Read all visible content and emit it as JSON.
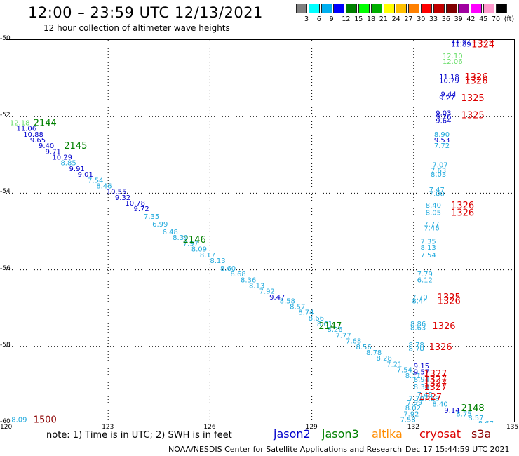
{
  "header": {
    "title": "12:00 – 23:59 UTC 12/13/2021",
    "subtitle": "12 hour collection of altimeter wave heights"
  },
  "legend": {
    "colors": [
      "#808080",
      "#00ffff",
      "#00b0f0",
      "#0000ff",
      "#008000",
      "#00ff00",
      "#00b000",
      "#ffff00",
      "#ffc000",
      "#ff8000",
      "#ff0000",
      "#c00000",
      "#800000",
      "#a000a0",
      "#ff00ff",
      "#ff99cc",
      "#000000"
    ],
    "labels": [
      "3",
      "6",
      "9",
      "12",
      "15",
      "18",
      "21",
      "24",
      "27",
      "30",
      "33",
      "36",
      "39",
      "42",
      "45",
      "70",
      "(ft)"
    ]
  },
  "axes": {
    "x_ticks": [
      "120",
      "123",
      "126",
      "129",
      "132",
      "135"
    ],
    "y_ticks": [
      "-50",
      "-52",
      "-54",
      "-56",
      "-58",
      "-60"
    ]
  },
  "footer": {
    "note": "note: 1) Time is in UTC; 2) SWH is in feet",
    "satellites": [
      {
        "name": "jason2",
        "color": "#0000cc"
      },
      {
        "name": "jason3",
        "color": "#008000"
      },
      {
        "name": "altika",
        "color": "#ff8c00"
      },
      {
        "name": "cryosat",
        "color": "#dd0000"
      },
      {
        "name": "s3a",
        "color": "#8b0000"
      }
    ],
    "credit": "NOAA/NESDIS Center for Satellite Applications and Research",
    "timestamp": "Dec 17 15:44:59 UTC 2021"
  },
  "map_data": {
    "x_range": [
      120,
      135
    ],
    "y_range": [
      -60,
      -50
    ],
    "time_labels": [
      {
        "text": "2144",
        "lon": 120.8,
        "lat": -52.15,
        "color": "#008000"
      },
      {
        "text": "2145",
        "lon": 121.7,
        "lat": -52.75,
        "color": "#008000"
      },
      {
        "text": "2146",
        "lon": 125.2,
        "lat": -55.2,
        "color": "#008000"
      },
      {
        "text": "2147",
        "lon": 129.2,
        "lat": -57.45,
        "color": "#008000"
      },
      {
        "text": "2148",
        "lon": 133.4,
        "lat": -59.6,
        "color": "#008000"
      },
      {
        "text": "1500",
        "lon": 120.8,
        "lat": -59.9,
        "color": "#8b0000"
      },
      {
        "text": "1324",
        "lon": 133.7,
        "lat": -50.0,
        "color": "#dd0000"
      },
      {
        "text": "1324",
        "lon": 133.7,
        "lat": -50.1,
        "color": "#dd0000"
      },
      {
        "text": "1326",
        "lon": 133.5,
        "lat": -50.95,
        "color": "#dd0000"
      },
      {
        "text": "1326",
        "lon": 133.5,
        "lat": -51.05,
        "color": "#dd0000"
      },
      {
        "text": "1325",
        "lon": 133.4,
        "lat": -51.5,
        "color": "#dd0000"
      },
      {
        "text": "1325",
        "lon": 133.4,
        "lat": -51.95,
        "color": "#dd0000"
      },
      {
        "text": "1326",
        "lon": 133.1,
        "lat": -54.3,
        "color": "#dd0000"
      },
      {
        "text": "1326",
        "lon": 133.1,
        "lat": -54.5,
        "color": "#dd0000"
      },
      {
        "text": "1325",
        "lon": 132.7,
        "lat": -56.7,
        "color": "#dd0000"
      },
      {
        "text": "1326",
        "lon": 132.7,
        "lat": -56.8,
        "color": "#dd0000"
      },
      {
        "text": "1326",
        "lon": 132.55,
        "lat": -57.45,
        "color": "#dd0000"
      },
      {
        "text": "1326",
        "lon": 132.45,
        "lat": -58.0,
        "color": "#dd0000"
      },
      {
        "text": "1327",
        "lon": 132.3,
        "lat": -58.7,
        "color": "#dd0000"
      },
      {
        "text": "1327",
        "lon": 132.3,
        "lat": -58.85,
        "color": "#dd0000"
      },
      {
        "text": "1327",
        "lon": 132.3,
        "lat": -58.95,
        "color": "#dd0000"
      },
      {
        "text": "1327",
        "lon": 132.3,
        "lat": -59.05,
        "color": "#dd0000"
      },
      {
        "text": "1327",
        "lon": 132.15,
        "lat": -59.3,
        "color": "#dd0000"
      }
    ],
    "points": [
      {
        "t": "12.18",
        "lon": 120.1,
        "lat": -52.15,
        "c": "#66dd66"
      },
      {
        "t": "11.06",
        "lon": 120.3,
        "lat": -52.3,
        "c": "#0000cc"
      },
      {
        "t": "10.88",
        "lon": 120.5,
        "lat": -52.45,
        "c": "#0000cc"
      },
      {
        "t": "9.65",
        "lon": 120.7,
        "lat": -52.6,
        "c": "#0000cc"
      },
      {
        "t": "9.40",
        "lon": 120.95,
        "lat": -52.75,
        "c": "#0000cc"
      },
      {
        "t": "9.71",
        "lon": 121.15,
        "lat": -52.9,
        "c": "#0000cc"
      },
      {
        "t": "10.29",
        "lon": 121.35,
        "lat": -53.05,
        "c": "#0000cc"
      },
      {
        "t": "8.85",
        "lon": 121.6,
        "lat": -53.2,
        "c": "#22aadd"
      },
      {
        "t": "9.91",
        "lon": 121.85,
        "lat": -53.35,
        "c": "#0000cc"
      },
      {
        "t": "9.01",
        "lon": 122.1,
        "lat": -53.5,
        "c": "#0000cc"
      },
      {
        "t": "7.54",
        "lon": 122.4,
        "lat": -53.65,
        "c": "#22aadd"
      },
      {
        "t": "8.46",
        "lon": 122.65,
        "lat": -53.8,
        "c": "#22aadd"
      },
      {
        "t": "10.55",
        "lon": 122.95,
        "lat": -53.95,
        "c": "#0000cc"
      },
      {
        "t": "9.32",
        "lon": 123.2,
        "lat": -54.1,
        "c": "#0000cc"
      },
      {
        "t": "10.78",
        "lon": 123.5,
        "lat": -54.25,
        "c": "#0000cc"
      },
      {
        "t": "9.72",
        "lon": 123.75,
        "lat": -54.4,
        "c": "#0000cc"
      },
      {
        "t": "7.35",
        "lon": 124.05,
        "lat": -54.6,
        "c": "#22aadd"
      },
      {
        "t": "6.99",
        "lon": 124.3,
        "lat": -54.8,
        "c": "#22aadd"
      },
      {
        "t": "6.48",
        "lon": 124.6,
        "lat": -55.0,
        "c": "#22aadd"
      },
      {
        "t": "8.39",
        "lon": 124.9,
        "lat": -55.15,
        "c": "#22aadd"
      },
      {
        "t": "7.97",
        "lon": 125.2,
        "lat": -55.3,
        "c": "#22aadd"
      },
      {
        "t": "8.09",
        "lon": 125.45,
        "lat": -55.45,
        "c": "#22aadd"
      },
      {
        "t": "8.17",
        "lon": 125.7,
        "lat": -55.6,
        "c": "#22aadd"
      },
      {
        "t": "8.13",
        "lon": 126.0,
        "lat": -55.75,
        "c": "#22aadd"
      },
      {
        "t": "8.60",
        "lon": 126.3,
        "lat": -55.95,
        "c": "#22aadd"
      },
      {
        "t": "8.68",
        "lon": 126.6,
        "lat": -56.1,
        "c": "#22aadd"
      },
      {
        "t": "8.36",
        "lon": 126.9,
        "lat": -56.25,
        "c": "#22aadd"
      },
      {
        "t": "8.13",
        "lon": 127.15,
        "lat": -56.4,
        "c": "#22aadd"
      },
      {
        "t": "7.92",
        "lon": 127.45,
        "lat": -56.55,
        "c": "#22aadd"
      },
      {
        "t": "9.47",
        "lon": 127.75,
        "lat": -56.7,
        "c": "#0000cc"
      },
      {
        "t": "8.58",
        "lon": 128.05,
        "lat": -56.8,
        "c": "#22aadd"
      },
      {
        "t": "8.57",
        "lon": 128.35,
        "lat": -56.95,
        "c": "#22aadd"
      },
      {
        "t": "8.74",
        "lon": 128.6,
        "lat": -57.1,
        "c": "#22aadd"
      },
      {
        "t": "8.66",
        "lon": 128.9,
        "lat": -57.25,
        "c": "#22aadd"
      },
      {
        "t": "8.61",
        "lon": 129.15,
        "lat": -57.4,
        "c": "#22aadd"
      },
      {
        "t": "8.26",
        "lon": 129.45,
        "lat": -57.55,
        "c": "#22aadd"
      },
      {
        "t": "7.77",
        "lon": 129.7,
        "lat": -57.7,
        "c": "#22aadd"
      },
      {
        "t": "7.68",
        "lon": 130.0,
        "lat": -57.85,
        "c": "#22aadd"
      },
      {
        "t": "8.56",
        "lon": 130.3,
        "lat": -58.0,
        "c": "#22aadd"
      },
      {
        "t": "8.78",
        "lon": 130.6,
        "lat": -58.15,
        "c": "#22aadd"
      },
      {
        "t": "8.28",
        "lon": 130.9,
        "lat": -58.3,
        "c": "#22aadd"
      },
      {
        "t": "7.21",
        "lon": 131.2,
        "lat": -58.45,
        "c": "#22aadd"
      },
      {
        "t": "7.54",
        "lon": 131.5,
        "lat": -58.6,
        "c": "#22aadd"
      },
      {
        "t": "8.11",
        "lon": 131.75,
        "lat": -58.75,
        "c": "#22aadd"
      },
      {
        "t": "8.94",
        "lon": 132.0,
        "lat": -58.85,
        "c": "#22aadd"
      },
      {
        "t": "8.34",
        "lon": 132.0,
        "lat": -59.05,
        "c": "#22aadd"
      },
      {
        "t": "9.15",
        "lon": 132.0,
        "lat": -58.5,
        "c": "#0000cc"
      },
      {
        "t": "9.57",
        "lon": 132.0,
        "lat": -58.65,
        "c": "#0000cc"
      },
      {
        "t": "7.45",
        "lon": 132.1,
        "lat": -59.25,
        "c": "#22aadd"
      },
      {
        "t": "7.70",
        "lon": 131.85,
        "lat": -59.35,
        "c": "#22aadd"
      },
      {
        "t": "7.99",
        "lon": 131.8,
        "lat": -59.45,
        "c": "#22aadd"
      },
      {
        "t": "8.02",
        "lon": 131.75,
        "lat": -59.6,
        "c": "#22aadd"
      },
      {
        "t": "7.92",
        "lon": 131.7,
        "lat": -59.75,
        "c": "#22aadd"
      },
      {
        "t": "7.58",
        "lon": 131.6,
        "lat": -59.9,
        "c": "#22aadd"
      },
      {
        "t": "7.69",
        "lon": 132.3,
        "lat": -59.35,
        "c": "#22aadd"
      },
      {
        "t": "8.40",
        "lon": 132.55,
        "lat": -59.5,
        "c": "#22aadd"
      },
      {
        "t": "9.14",
        "lon": 132.9,
        "lat": -59.65,
        "c": "#0000cc"
      },
      {
        "t": "8.75",
        "lon": 133.25,
        "lat": -59.75,
        "c": "#22aadd"
      },
      {
        "t": "8.57",
        "lon": 133.6,
        "lat": -59.85,
        "c": "#22aadd"
      },
      {
        "t": "8.67",
        "lon": 133.9,
        "lat": -60.0,
        "c": "#22aadd"
      },
      {
        "t": "8.46",
        "lon": 134.3,
        "lat": -60.15,
        "c": "#22aadd"
      },
      {
        "t": "8.01",
        "lon": 134.55,
        "lat": -60.25,
        "c": "#22aadd"
      },
      {
        "t": "11.47",
        "lon": 133.1,
        "lat": -50.0,
        "c": "#0000cc"
      },
      {
        "t": "11.89",
        "lon": 133.1,
        "lat": -50.1,
        "c": "#0000cc"
      },
      {
        "t": "12.10",
        "lon": 132.85,
        "lat": -50.4,
        "c": "#66dd66"
      },
      {
        "t": "12.06",
        "lon": 132.85,
        "lat": -50.55,
        "c": "#66dd66"
      },
      {
        "t": "11.18",
        "lon": 132.75,
        "lat": -50.95,
        "c": "#0000cc"
      },
      {
        "t": "10.79",
        "lon": 132.75,
        "lat": -51.05,
        "c": "#0000cc"
      },
      {
        "t": "9.44",
        "lon": 132.8,
        "lat": -51.4,
        "c": "#0000cc"
      },
      {
        "t": "9.27",
        "lon": 132.75,
        "lat": -51.5,
        "c": "#0000cc"
      },
      {
        "t": "9.03",
        "lon": 132.65,
        "lat": -51.9,
        "c": "#0000cc"
      },
      {
        "t": "9.26",
        "lon": 132.65,
        "lat": -52.0,
        "c": "#0000cc"
      },
      {
        "t": "9.64",
        "lon": 132.65,
        "lat": -52.1,
        "c": "#0000cc"
      },
      {
        "t": "8.90",
        "lon": 132.6,
        "lat": -52.45,
        "c": "#22aadd"
      },
      {
        "t": "9.53",
        "lon": 132.6,
        "lat": -52.6,
        "c": "#0000cc"
      },
      {
        "t": "7.72",
        "lon": 132.6,
        "lat": -52.75,
        "c": "#22aadd"
      },
      {
        "t": "7.07",
        "lon": 132.55,
        "lat": -53.25,
        "c": "#22aadd"
      },
      {
        "t": "7.63",
        "lon": 132.5,
        "lat": -53.4,
        "c": "#22aadd"
      },
      {
        "t": "8.03",
        "lon": 132.5,
        "lat": -53.5,
        "c": "#22aadd"
      },
      {
        "t": "7.47",
        "lon": 132.45,
        "lat": -53.9,
        "c": "#22aadd"
      },
      {
        "t": "7.00",
        "lon": 132.45,
        "lat": -54.0,
        "c": "#22aadd"
      },
      {
        "t": "8.40",
        "lon": 132.35,
        "lat": -54.3,
        "c": "#22aadd"
      },
      {
        "t": "8.05",
        "lon": 132.35,
        "lat": -54.5,
        "c": "#22aadd"
      },
      {
        "t": "7.77",
        "lon": 132.3,
        "lat": -54.8,
        "c": "#22aadd"
      },
      {
        "t": "7.46",
        "lon": 132.3,
        "lat": -54.9,
        "c": "#22aadd"
      },
      {
        "t": "7.35",
        "lon": 132.2,
        "lat": -55.25,
        "c": "#22aadd"
      },
      {
        "t": "8.13",
        "lon": 132.2,
        "lat": -55.4,
        "c": "#22aadd"
      },
      {
        "t": "7.54",
        "lon": 132.2,
        "lat": -55.6,
        "c": "#22aadd"
      },
      {
        "t": "7.79",
        "lon": 132.1,
        "lat": -56.1,
        "c": "#22aadd"
      },
      {
        "t": "6.12",
        "lon": 132.1,
        "lat": -56.25,
        "c": "#22aadd"
      },
      {
        "t": "7.70",
        "lon": 131.95,
        "lat": -56.7,
        "c": "#22aadd"
      },
      {
        "t": "8.44",
        "lon": 131.95,
        "lat": -56.8,
        "c": "#22aadd"
      },
      {
        "t": "8.86",
        "lon": 131.9,
        "lat": -57.4,
        "c": "#22aadd"
      },
      {
        "t": "8.63",
        "lon": 131.9,
        "lat": -57.5,
        "c": "#22aadd"
      },
      {
        "t": "8.78",
        "lon": 131.85,
        "lat": -57.95,
        "c": "#22aadd"
      },
      {
        "t": "8.70",
        "lon": 131.85,
        "lat": -58.05,
        "c": "#22aadd"
      },
      {
        "t": "8.09",
        "lon": 120.15,
        "lat": -59.9,
        "c": "#22aadd"
      }
    ]
  }
}
